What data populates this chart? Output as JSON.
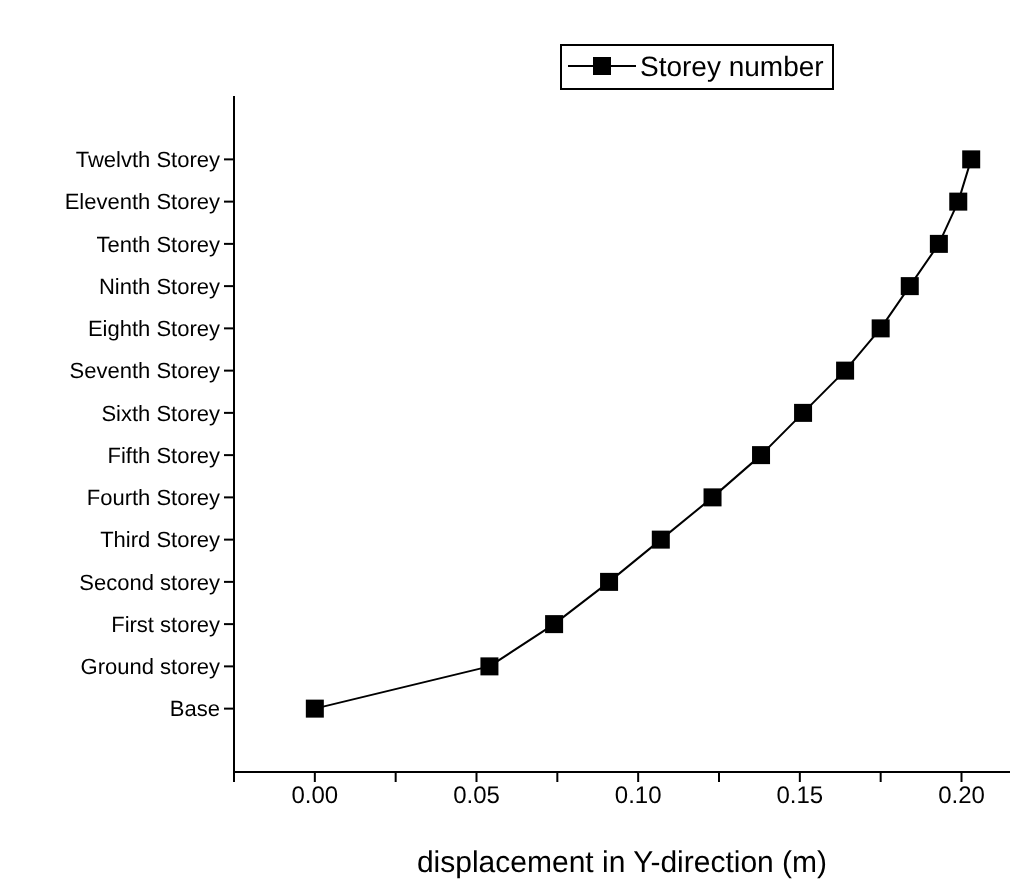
{
  "chart_data": {
    "type": "line",
    "xlabel": "displacement in Y-direction (m)",
    "categories": [
      "Twelvth Storey",
      "Eleventh Storey",
      "Tenth Storey",
      "Ninth Storey",
      "Eighth Storey",
      "Seventh Storey",
      "Sixth Storey",
      "Fifth Storey",
      "Fourth Storey",
      "Third Storey",
      "Second storey",
      "First storey",
      "Ground storey",
      "Base"
    ],
    "series": [
      {
        "name": "Storey number",
        "color": "#000000",
        "values": [
          0.203,
          0.199,
          0.193,
          0.184,
          0.175,
          0.164,
          0.151,
          0.138,
          0.123,
          0.107,
          0.091,
          0.074,
          0.054,
          0
        ]
      }
    ],
    "orientation": "horizontal",
    "xlim": [
      -0.025,
      0.215
    ],
    "xticks": [
      {
        "value": -0.025,
        "label": null
      },
      {
        "value": 0,
        "label": "0.00"
      },
      {
        "value": 0.025,
        "label": null
      },
      {
        "value": 0.05,
        "label": "0.05"
      },
      {
        "value": 0.075,
        "label": null
      },
      {
        "value": 0.1,
        "label": "0.10"
      },
      {
        "value": 0.125,
        "label": null
      },
      {
        "value": 0.15,
        "label": "0.15"
      },
      {
        "value": 0.175,
        "label": null
      },
      {
        "value": 0.2,
        "label": "0.20"
      }
    ],
    "marker": "square",
    "line_style": "solid",
    "legend": "top right",
    "grid": false
  }
}
